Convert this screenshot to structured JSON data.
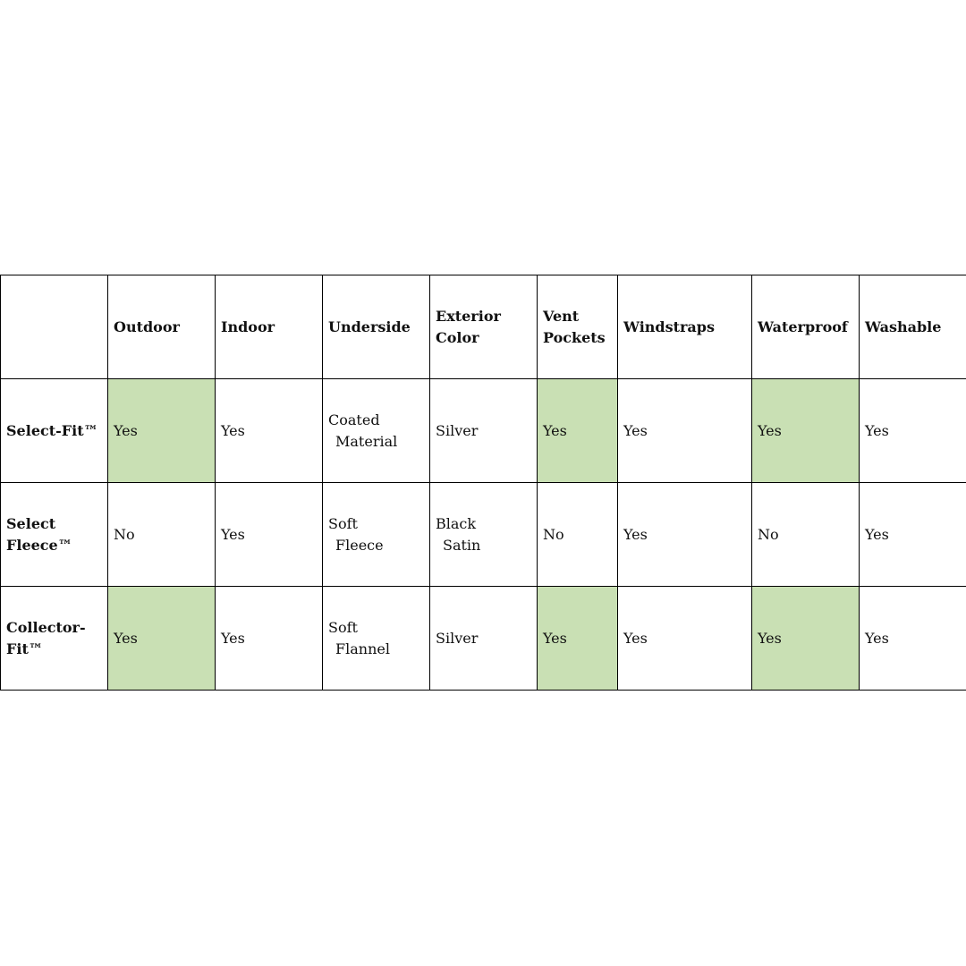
{
  "table": {
    "highlight_color": "#c9e0b4",
    "header": [
      "",
      "Outdoor",
      "Indoor",
      "Underside",
      [
        "Exterior",
        "Color"
      ],
      [
        "Vent",
        "Pockets"
      ],
      "Windstraps",
      "Waterproof",
      "Washable"
    ],
    "rows": [
      {
        "name": "Select-Fit™",
        "cells": [
          "Yes",
          "Yes",
          [
            "Coated",
            "Material"
          ],
          "Silver",
          "Yes",
          "Yes",
          "Yes",
          "Yes"
        ],
        "highlighted": [
          true,
          false,
          false,
          false,
          true,
          false,
          true,
          false
        ]
      },
      {
        "name": [
          "Select",
          "Fleece™"
        ],
        "cells": [
          "No",
          "Yes",
          [
            "Soft",
            "Fleece"
          ],
          [
            "Black",
            "Satin"
          ],
          "No",
          "Yes",
          "No",
          "Yes"
        ],
        "highlighted": [
          false,
          false,
          false,
          false,
          false,
          false,
          false,
          false
        ]
      },
      {
        "name": [
          "Collector-",
          "Fit™"
        ],
        "cells": [
          "Yes",
          "Yes",
          [
            "Soft",
            "Flannel"
          ],
          "Silver",
          "Yes",
          "Yes",
          "Yes",
          "Yes"
        ],
        "highlighted": [
          true,
          false,
          false,
          false,
          true,
          false,
          true,
          false
        ]
      }
    ]
  }
}
